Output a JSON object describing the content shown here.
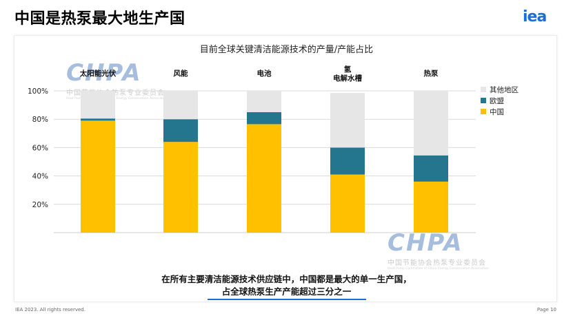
{
  "slide_title": "中国是热泵最大地生产国",
  "logo_text": "iea",
  "chart_data": {
    "type": "bar",
    "stacked": true,
    "title": "目前全球关键清洁能源技术的产量/产能占比",
    "categories": [
      {
        "label": "太阳能光伏",
        "sublabel": ""
      },
      {
        "label": "风能",
        "sublabel": ""
      },
      {
        "label": "电池",
        "sublabel": ""
      },
      {
        "label": "氢",
        "sublabel": "电解水槽"
      },
      {
        "label": "热泵",
        "sublabel": ""
      }
    ],
    "series": [
      {
        "name": "中国",
        "color": "#ffc000",
        "values": [
          79,
          64,
          76.5,
          41,
          36
        ]
      },
      {
        "name": "欧盟",
        "color": "#23768e",
        "values": [
          1.5,
          16,
          8.5,
          19,
          18.5
        ]
      },
      {
        "name": "其他地区",
        "color": "#e6e6e6",
        "values": [
          19.5,
          20,
          15,
          38.5,
          45.5
        ]
      }
    ],
    "legend_order": [
      "其他地区",
      "欧盟",
      "中国"
    ],
    "ylim": [
      0,
      100
    ],
    "yticks": [
      "100%",
      "80%",
      "60%",
      "40%",
      "20%"
    ],
    "ytick_values": [
      100,
      80,
      60,
      40,
      20
    ],
    "grid": true
  },
  "caption": {
    "line1": "在所有主要清洁能源技术供应链中，中国都是最大的单一生产国，",
    "line2": "占全球热泵生产产能超过三分之一"
  },
  "watermark": {
    "brand": "CHPA",
    "cn": "中国节能协会热泵专业委员会",
    "en": "Heat Pump Committee of China Energy Conservation Association"
  },
  "footer": {
    "copyright": "IEA 2023. All rights reserved.",
    "page": "Page 10"
  }
}
